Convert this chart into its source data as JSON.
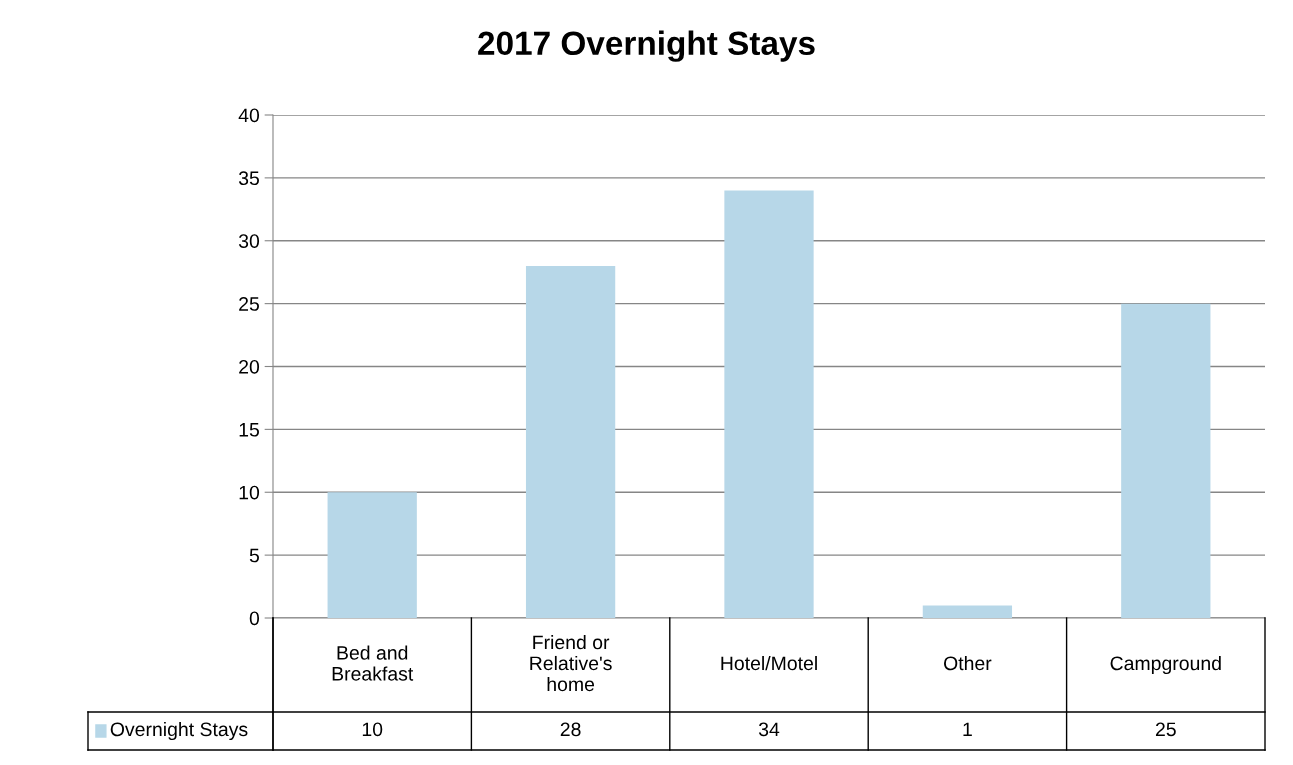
{
  "chart_data": {
    "type": "bar",
    "title": "2017 Overnight Stays",
    "categories": [
      "Bed and\nBreakfast",
      "Friend or\nRelative's\nhome",
      "Hotel/Motel",
      "Other",
      "Campground"
    ],
    "series": [
      {
        "name": "Overnight Stays",
        "color": "#b7d7e8",
        "values": [
          10,
          28,
          34,
          1,
          25
        ]
      }
    ],
    "ylim": [
      0,
      40
    ],
    "yticks": [
      0,
      5,
      10,
      15,
      20,
      25,
      30,
      35,
      40
    ],
    "grid": "y",
    "legend": "bottom",
    "data_labels": true
  }
}
